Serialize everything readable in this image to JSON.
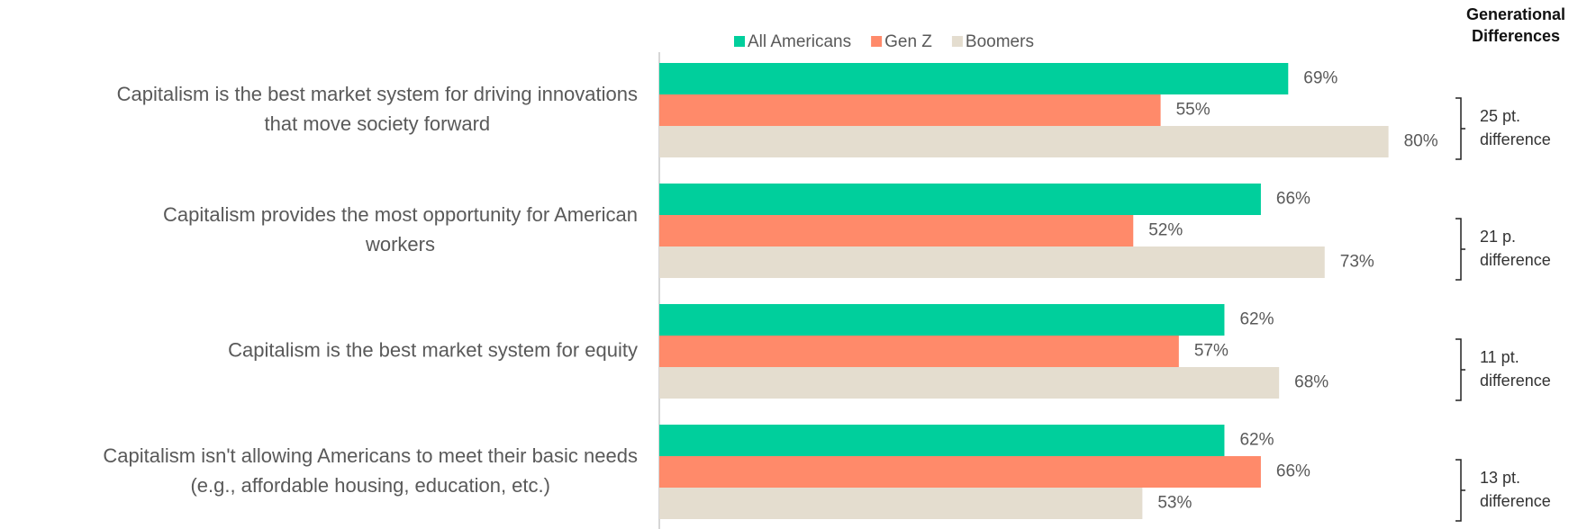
{
  "chart_data": {
    "type": "grouped_hbar",
    "categories": [
      [
        "Capitalism is the best market system for driving innovations",
        "that move society forward"
      ],
      [
        "Capitalism provides the most opportunity for American",
        "workers"
      ],
      [
        "Capitalism is the best market system for equity"
      ],
      [
        "Capitalism isn't allowing Americans to meet their basic needs",
        "(e.g., affordable housing, education, etc.)"
      ]
    ],
    "series": [
      {
        "name": "All Americans",
        "color": "#00cf9c",
        "values": [
          69,
          66,
          62,
          62
        ],
        "value_labels": [
          "69%",
          "66%",
          "62%",
          "62%"
        ]
      },
      {
        "name": "Gen Z",
        "color": "#ff8a6a",
        "values": [
          55,
          52,
          57,
          66
        ],
        "value_labels": [
          "55%",
          "52%",
          "57%",
          "66%"
        ]
      },
      {
        "name": "Boomers",
        "color": "#e4ddcf",
        "values": [
          80,
          73,
          68,
          53
        ],
        "value_labels": [
          "80%",
          "73%",
          "68%",
          "53%"
        ]
      }
    ],
    "xlim": [
      0,
      100
    ],
    "legend": "top",
    "annotation_title": [
      "Generational",
      "Differences"
    ],
    "annotations": [
      [
        "25 pt.",
        "difference"
      ],
      [
        "21 p.",
        "difference"
      ],
      [
        "11 pt.",
        "difference"
      ],
      [
        "13 pt.",
        "difference"
      ]
    ]
  }
}
